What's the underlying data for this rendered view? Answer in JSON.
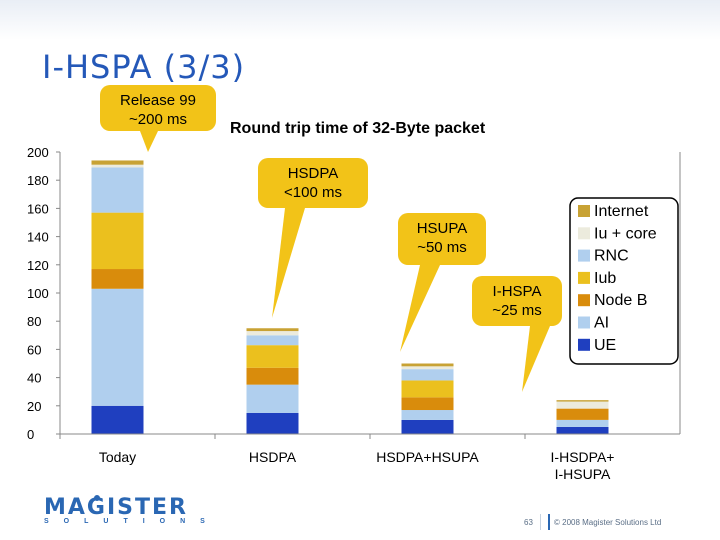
{
  "slide": {
    "title": "I-HSPA (3/3)",
    "chart_title": "Round trip time of 32-Byte packet",
    "logo_text": "MAGISTER",
    "logo_sub": "SOLUTIONS",
    "page_number": "63",
    "copyright": "© 2008 Magister Solutions Ltd"
  },
  "callouts": [
    {
      "lines": [
        "Release 99",
        "~200 ms"
      ]
    },
    {
      "lines": [
        "HSDPA",
        "<100 ms"
      ]
    },
    {
      "lines": [
        "HSUPA",
        "~50 ms"
      ]
    },
    {
      "lines": [
        "I-HSPA",
        "~25 ms"
      ]
    }
  ],
  "colors": {
    "callout_fill": "#f2c318",
    "axis": "#888888"
  },
  "chart_data": {
    "type": "bar",
    "stacked": true,
    "title": "Round trip time of 32-Byte packet",
    "xlabel": "",
    "ylabel": "",
    "ylim": [
      0,
      200
    ],
    "yticks": [
      0,
      20,
      40,
      60,
      80,
      100,
      120,
      140,
      160,
      180,
      200
    ],
    "grid": false,
    "legend_position": "right",
    "categories": [
      "Today",
      "HSDPA",
      "HSDPA+HSUPA",
      "I-HSDPA+ I-HSUPA"
    ],
    "series": [
      {
        "name": "UE",
        "color": "#1f3fbf",
        "values": [
          20,
          15,
          10,
          5
        ]
      },
      {
        "name": "AI",
        "color": "#b0cfee",
        "values": [
          83,
          20,
          7,
          5
        ]
      },
      {
        "name": "Node B",
        "color": "#d98c0c",
        "values": [
          14,
          12,
          9,
          8
        ]
      },
      {
        "name": "Iub",
        "color": "#ebc01e",
        "values": [
          40,
          16,
          12,
          0
        ]
      },
      {
        "name": "RNC",
        "color": "#b0cfee",
        "values": [
          32,
          7,
          8,
          0
        ]
      },
      {
        "name": "Iu + core",
        "color": "#ecebdd",
        "values": [
          2,
          3,
          2,
          5
        ]
      },
      {
        "name": "Internet",
        "color": "#c8a234",
        "values": [
          3,
          2,
          2,
          1
        ]
      }
    ]
  }
}
